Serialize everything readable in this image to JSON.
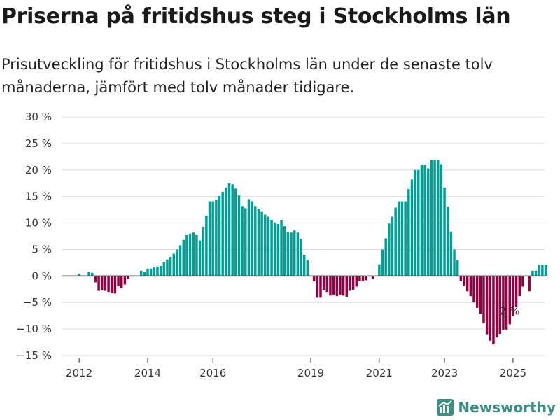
{
  "title": "Priserna på fritidshus steg i Stockholms län",
  "subtitle": "Prisutveckling för fritidshus i Stockholms län under de senaste tolv månaderna, jämfört med tolv månader tidigare.",
  "brand": "Newsworthy",
  "colors": {
    "positive": "#00a096",
    "negative": "#960041",
    "text": "#333333",
    "brand": "#3d8f86"
  },
  "chart_data": {
    "type": "bar",
    "title": "Priserna på fritidshus steg i Stockholms län",
    "ylim": [
      -15,
      30
    ],
    "yticks": [
      30,
      25,
      20,
      15,
      10,
      5,
      0,
      -5,
      -10,
      -15
    ],
    "ytick_labels": [
      "30 %",
      "25 %",
      "20 %",
      "15 %",
      "10 %",
      "5 %",
      "0 %",
      "−5 %",
      "−10 %",
      "−15 %"
    ],
    "xticks": [
      "2012",
      "2014",
      "2016",
      "2019",
      "2021",
      "2023",
      "2025"
    ],
    "xtick_positions": [
      4,
      25,
      45,
      75,
      96,
      116,
      137
    ],
    "annotation": {
      "text": "2 %",
      "index": 136
    },
    "grid": true,
    "values": [
      0,
      0,
      0,
      0,
      0.4,
      0,
      0,
      0.8,
      0.6,
      -1.2,
      -2.8,
      -2.7,
      -2.8,
      -3.0,
      -3.2,
      -3.3,
      -1.9,
      -2.3,
      -1.6,
      -0.6,
      0,
      0,
      0,
      1.0,
      0.8,
      1.4,
      1.4,
      1.6,
      1.8,
      1.9,
      2.6,
      3.1,
      3.6,
      4.2,
      5.0,
      5.8,
      6.8,
      7.8,
      8.0,
      8.2,
      7.8,
      6.7,
      9.3,
      11.4,
      14.1,
      14.1,
      14.4,
      15.1,
      15.9,
      16.7,
      17.5,
      17.3,
      16.5,
      15.2,
      13.2,
      12.8,
      14.5,
      14.1,
      13.2,
      12.7,
      12.1,
      11.6,
      11.2,
      10.6,
      10.1,
      9.8,
      10.6,
      9.4,
      8.3,
      8.2,
      8.6,
      8.2,
      7.0,
      4.0,
      3.0,
      0,
      -1.0,
      -4.1,
      -4.1,
      -2.6,
      -3.0,
      -3.7,
      -3.5,
      -3.8,
      -3.5,
      -3.7,
      -3.9,
      -2.8,
      -2.6,
      -2.0,
      -0.9,
      -0.9,
      -0.8,
      0,
      -0.6,
      0,
      2.2,
      5.0,
      7.1,
      9.9,
      11.2,
      12.9,
      14.1,
      14.1,
      14.1,
      16.4,
      18.2,
      20.0,
      20.0,
      21.0,
      21.0,
      20.3,
      21.9,
      21.9,
      21.9,
      21.1,
      16.7,
      13.1,
      8.4,
      5.0,
      3.0,
      -1.0,
      -1.8,
      -2.9,
      -3.8,
      -5.0,
      -6.0,
      -7.1,
      -8.9,
      -11.0,
      -12.2,
      -12.9,
      -11.6,
      -10.9,
      -10.1,
      -10.1,
      -9.1,
      -7.6,
      -5.8,
      -3.8,
      -2.0,
      0,
      -2.9,
      1.0,
      1.0,
      2.1,
      2.1,
      2.1
    ]
  }
}
